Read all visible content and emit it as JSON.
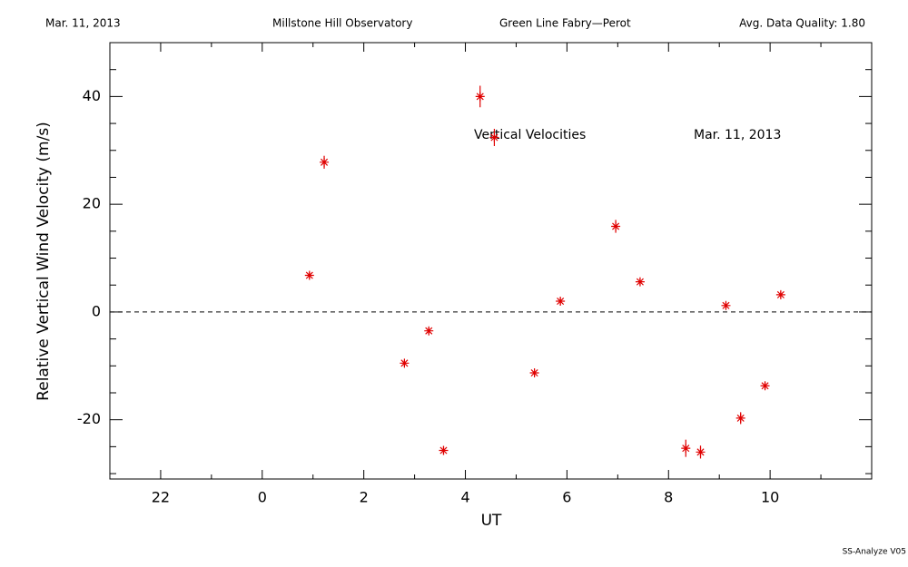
{
  "chart_data": {
    "type": "scatter",
    "header": [
      "Mar. 11, 2013",
      "Millstone Hill Observatory",
      "Green Line Fabry—Perot",
      "Avg. Data Quality: 1.80"
    ],
    "annotations": [
      "Vertical Velocities",
      "Mar. 11, 2013"
    ],
    "footer": "SS-Analyze V05",
    "x_label": "UT",
    "y_label": "Relative Vertical Wind Velocity (m/s)",
    "xlim": [
      -3,
      12
    ],
    "ylim": [
      -31,
      50
    ],
    "xticks": [
      {
        "value": -2,
        "label": "22"
      },
      0,
      2,
      4,
      6,
      8,
      10
    ],
    "yticks": [
      -20,
      0,
      20,
      40
    ],
    "xminor_ticks": [
      -3,
      -1,
      1,
      3,
      5,
      7,
      9,
      11,
      12
    ],
    "yminor_ticks": [
      -30,
      -25,
      -15,
      -10,
      -5,
      5,
      10,
      15,
      25,
      30,
      35,
      45,
      50
    ],
    "reference_line": 0,
    "color": "#e00000",
    "x": [
      0.93,
      1.22,
      2.8,
      3.28,
      3.57,
      4.29,
      4.57,
      5.36,
      5.87,
      6.96,
      7.44,
      8.34,
      8.63,
      9.13,
      9.42,
      9.9,
      10.21
    ],
    "values": [
      6.8,
      27.8,
      -9.5,
      -3.5,
      -25.7,
      40.0,
      32.4,
      -11.3,
      2.0,
      15.9,
      5.6,
      -25.3,
      -26.0,
      1.2,
      -19.7,
      -13.7,
      3.2
    ],
    "errors": [
      0.6,
      1.2,
      0.6,
      0.6,
      0.8,
      2.0,
      1.6,
      0.6,
      0.6,
      1.2,
      0.6,
      1.6,
      1.2,
      0.6,
      1.1,
      0.7,
      0.6
    ]
  }
}
